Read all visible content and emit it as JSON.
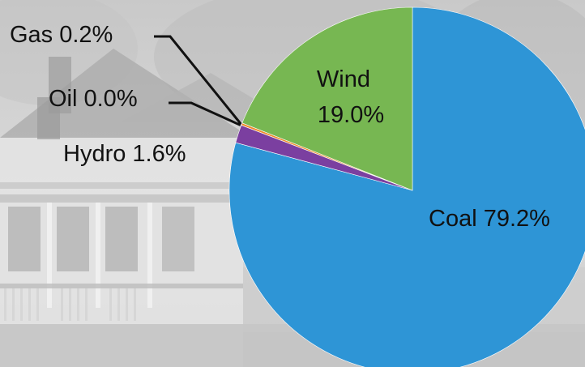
{
  "chart_data": {
    "type": "pie",
    "title": "",
    "start_angle_deg": 0,
    "direction": "clockwise",
    "slices": [
      {
        "label": "Coal",
        "value": 79.2,
        "display": "Coal 79.2%",
        "color": "#2e95d6"
      },
      {
        "label": "Hydro",
        "value": 1.6,
        "display": "Hydro 1.6%",
        "color": "#7b3fa0"
      },
      {
        "label": "Oil",
        "value": 0.0,
        "display": "Oil 0.0%",
        "color": "#c9c9c9"
      },
      {
        "label": "Gas",
        "value": 0.2,
        "display": "Gas 0.2%",
        "color": "#f08a2a"
      },
      {
        "label": "Wind",
        "value": 19.0,
        "display": "Wind 19.0%",
        "color": "#77b752"
      }
    ],
    "wind_label_lines": [
      "Wind",
      "19.0%"
    ]
  },
  "colors": {
    "leader_line": "#111111",
    "slice_border": "#ffffff"
  }
}
